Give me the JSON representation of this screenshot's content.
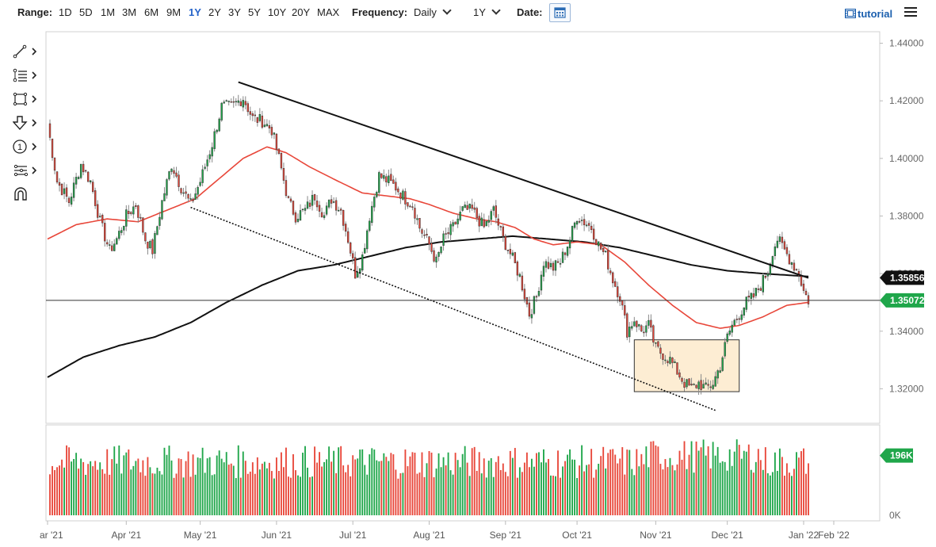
{
  "toolbar": {
    "range_label": "Range:",
    "ranges": [
      "1D",
      "5D",
      "1M",
      "3M",
      "6M",
      "9M",
      "1Y",
      "2Y",
      "3Y",
      "5Y",
      "10Y",
      "20Y",
      "MAX"
    ],
    "active_range": "1Y",
    "frequency_label": "Frequency:",
    "frequency_value": "Daily",
    "period_value": "1Y",
    "date_label": "Date:",
    "tutorial_label": "tutorial",
    "accent_color": "#2563c9"
  },
  "tools": {
    "icons": [
      "line-tool-icon",
      "fib-tool-icon",
      "rectangle-tool-icon",
      "arrow-tool-icon",
      "annotation-tool-icon",
      "measure-tool-icon",
      "magnet-icon"
    ],
    "annotation_glyph": "1"
  },
  "chart_data": {
    "type": "candlestick",
    "y_ticks": [
      "1.44000",
      "1.42000",
      "1.40000",
      "1.38000",
      "1.36000",
      "1.34000",
      "1.32000"
    ],
    "ylim": [
      1.308,
      1.444
    ],
    "x_ticks": [
      "ar '21",
      "Apr '21",
      "May '21",
      "Jun '21",
      "Jul '21",
      "Aug '21",
      "Sep '21",
      "Oct '21",
      "Nov '21",
      "Dec '21",
      "Jan '22",
      "Feb '22"
    ],
    "price_labels": [
      {
        "value": 1.35856,
        "text": "1.35856",
        "color": "#111111"
      },
      {
        "value": 1.35072,
        "text": "1.35072",
        "color": "#1fa64a"
      }
    ],
    "current_price_line": 1.35072,
    "up_color": "#1fa64a",
    "down_color": "#e8473a",
    "ma_fast_color": "#e8473a",
    "ma_slow_color": "#111111",
    "close_path": [
      [
        0,
        1.412
      ],
      [
        4,
        1.392
      ],
      [
        9,
        1.385
      ],
      [
        14,
        1.398
      ],
      [
        18,
        1.392
      ],
      [
        22,
        1.378
      ],
      [
        26,
        1.368
      ],
      [
        29,
        1.372
      ],
      [
        33,
        1.38
      ],
      [
        37,
        1.384
      ],
      [
        41,
        1.372
      ],
      [
        44,
        1.368
      ],
      [
        48,
        1.385
      ],
      [
        52,
        1.398
      ],
      [
        56,
        1.39
      ],
      [
        60,
        1.384
      ],
      [
        64,
        1.392
      ],
      [
        69,
        1.405
      ],
      [
        73,
        1.418
      ],
      [
        77,
        1.418
      ],
      [
        82,
        1.421
      ],
      [
        86,
        1.414
      ],
      [
        90,
        1.413
      ],
      [
        94,
        1.41
      ],
      [
        97,
        1.4
      ],
      [
        101,
        1.385
      ],
      [
        104,
        1.38
      ],
      [
        108,
        1.382
      ],
      [
        112,
        1.387
      ],
      [
        116,
        1.38
      ],
      [
        119,
        1.386
      ],
      [
        123,
        1.382
      ],
      [
        126,
        1.372
      ],
      [
        129,
        1.36
      ],
      [
        132,
        1.366
      ],
      [
        135,
        1.38
      ],
      [
        139,
        1.394
      ],
      [
        143,
        1.392
      ],
      [
        146,
        1.39
      ],
      [
        150,
        1.386
      ],
      [
        153,
        1.384
      ],
      [
        156,
        1.376
      ],
      [
        160,
        1.37
      ],
      [
        163,
        1.364
      ],
      [
        166,
        1.372
      ],
      [
        170,
        1.376
      ],
      [
        174,
        1.382
      ],
      [
        178,
        1.382
      ],
      [
        183,
        1.376
      ],
      [
        187,
        1.382
      ],
      [
        191,
        1.372
      ],
      [
        194,
        1.367
      ],
      [
        198,
        1.359
      ],
      [
        202,
        1.346
      ],
      [
        205,
        1.352
      ],
      [
        208,
        1.364
      ],
      [
        212,
        1.362
      ],
      [
        215,
        1.364
      ],
      [
        219,
        1.372
      ],
      [
        222,
        1.38
      ],
      [
        225,
        1.378
      ],
      [
        228,
        1.376
      ],
      [
        231,
        1.37
      ],
      [
        234,
        1.366
      ],
      [
        237,
        1.358
      ],
      [
        240,
        1.352
      ],
      [
        243,
        1.34
      ],
      [
        246,
        1.344
      ],
      [
        249,
        1.34
      ],
      [
        252,
        1.342
      ],
      [
        255,
        1.334
      ],
      [
        258,
        1.332
      ],
      [
        261,
        1.33
      ],
      [
        264,
        1.326
      ],
      [
        267,
        1.322
      ],
      [
        270,
        1.32
      ],
      [
        273,
        1.322
      ],
      [
        276,
        1.32
      ],
      [
        279,
        1.322
      ],
      [
        282,
        1.328
      ],
      [
        285,
        1.338
      ],
      [
        287,
        1.342
      ],
      [
        290,
        1.346
      ],
      [
        293,
        1.35
      ],
      [
        296,
        1.352
      ],
      [
        299,
        1.356
      ],
      [
        302,
        1.361
      ],
      [
        304,
        1.368
      ],
      [
        306,
        1.372
      ],
      [
        309,
        1.368
      ],
      [
        312,
        1.364
      ],
      [
        315,
        1.36
      ],
      [
        317,
        1.354
      ],
      [
        319,
        1.3507
      ]
    ],
    "ma_fast": [
      [
        0,
        1.372
      ],
      [
        12,
        1.377
      ],
      [
        25,
        1.379
      ],
      [
        38,
        1.378
      ],
      [
        50,
        1.382
      ],
      [
        62,
        1.386
      ],
      [
        72,
        1.393
      ],
      [
        82,
        1.4
      ],
      [
        92,
        1.404
      ],
      [
        100,
        1.402
      ],
      [
        110,
        1.397
      ],
      [
        122,
        1.392
      ],
      [
        132,
        1.388
      ],
      [
        142,
        1.387
      ],
      [
        152,
        1.386
      ],
      [
        160,
        1.384
      ],
      [
        170,
        1.381
      ],
      [
        180,
        1.379
      ],
      [
        188,
        1.378
      ],
      [
        196,
        1.376
      ],
      [
        204,
        1.372
      ],
      [
        212,
        1.37
      ],
      [
        222,
        1.371
      ],
      [
        232,
        1.37
      ],
      [
        242,
        1.364
      ],
      [
        252,
        1.356
      ],
      [
        262,
        1.349
      ],
      [
        272,
        1.343
      ],
      [
        282,
        1.341
      ],
      [
        290,
        1.342
      ],
      [
        300,
        1.345
      ],
      [
        310,
        1.349
      ],
      [
        319,
        1.35
      ]
    ],
    "ma_slow": [
      [
        0,
        1.324
      ],
      [
        15,
        1.331
      ],
      [
        30,
        1.335
      ],
      [
        45,
        1.338
      ],
      [
        60,
        1.343
      ],
      [
        75,
        1.35
      ],
      [
        90,
        1.356
      ],
      [
        105,
        1.361
      ],
      [
        120,
        1.363
      ],
      [
        135,
        1.366
      ],
      [
        150,
        1.369
      ],
      [
        165,
        1.371
      ],
      [
        180,
        1.372
      ],
      [
        195,
        1.373
      ],
      [
        210,
        1.372
      ],
      [
        225,
        1.371
      ],
      [
        240,
        1.369
      ],
      [
        255,
        1.366
      ],
      [
        270,
        1.363
      ],
      [
        285,
        1.361
      ],
      [
        300,
        1.36
      ],
      [
        319,
        1.359
      ]
    ],
    "trendlines": [
      {
        "style": "solid",
        "from": [
          80,
          1.4265
        ],
        "to": [
          319,
          1.3585
        ]
      },
      {
        "style": "dotted",
        "from": [
          60,
          1.383
        ],
        "to": [
          280,
          1.3125
        ]
      }
    ],
    "zone": {
      "from": [
        246,
        1.337
      ],
      "to": [
        290,
        1.319
      ]
    },
    "volume_label": "196K",
    "volume_zero_label": "0K",
    "volume_ymax": 260
  }
}
